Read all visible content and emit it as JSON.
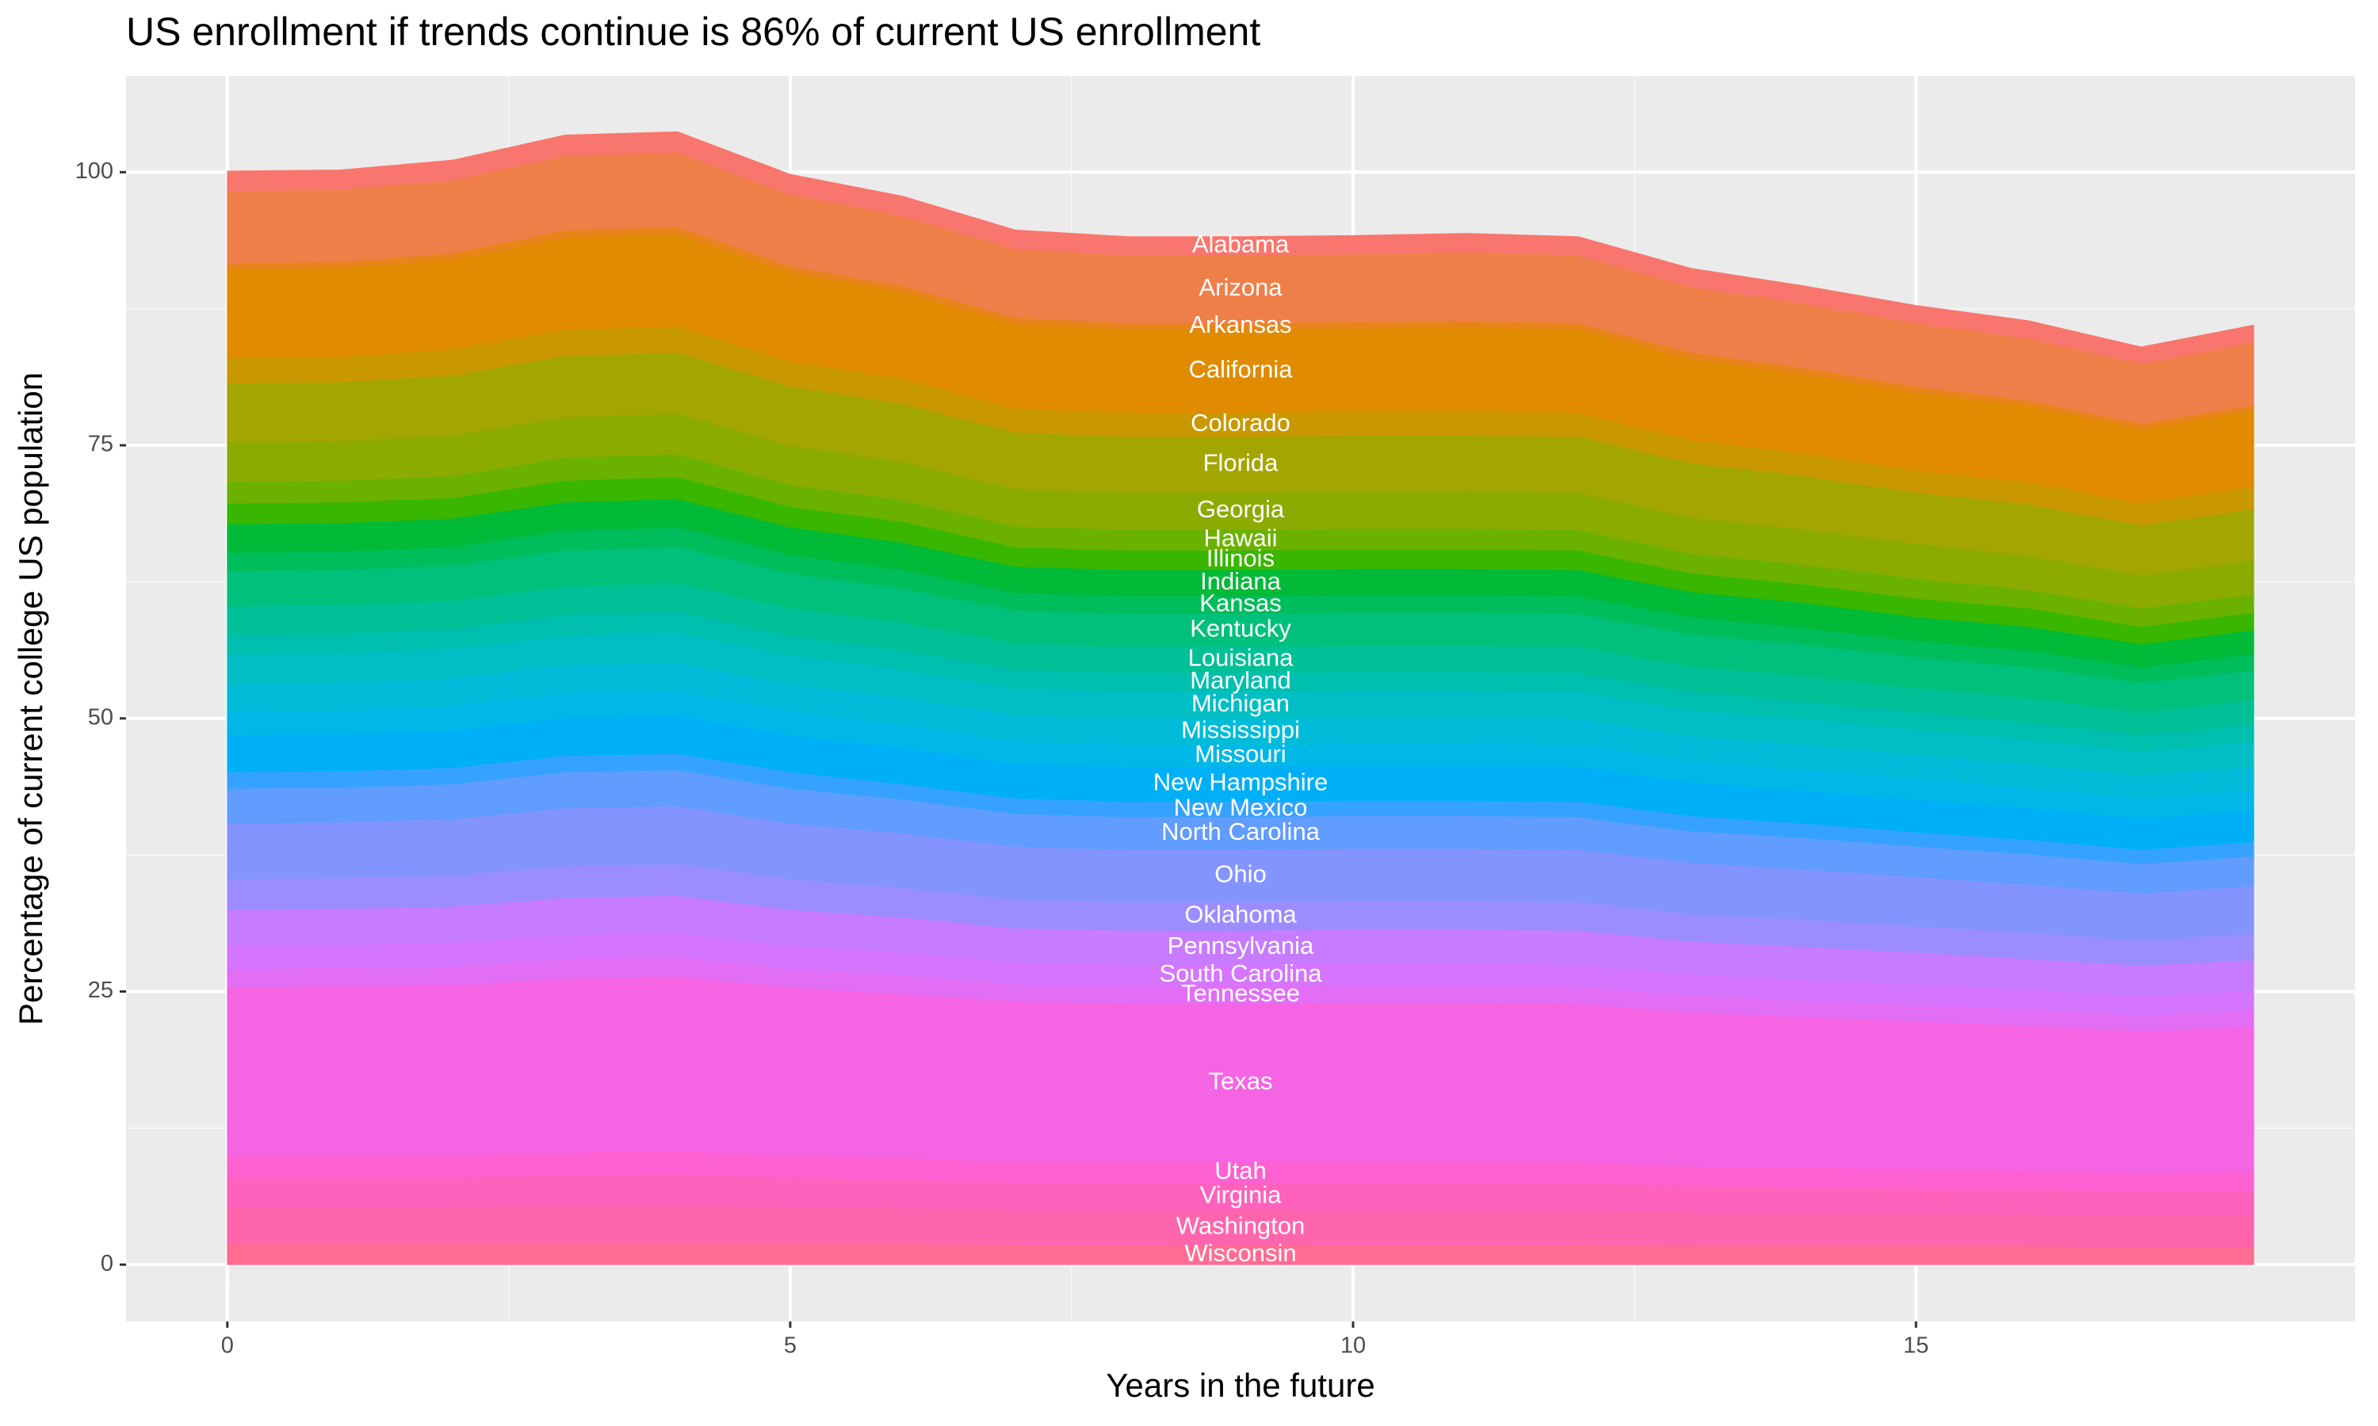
{
  "chart_data": {
    "type": "stacked_area",
    "title": "US enrollment if trends continue is 86% of current US enrollment",
    "x_label": "Years in the future",
    "y_label": "Percentage of current college US population",
    "x": [
      0,
      1,
      2,
      3,
      4,
      5,
      6,
      7,
      8,
      9,
      10,
      11,
      12,
      13,
      14,
      15,
      16,
      17,
      18
    ],
    "xlim": [
      -0.9,
      18.9
    ],
    "xticks": [
      0,
      5,
      10,
      15
    ],
    "ylim": [
      -5.2,
      108.8
    ],
    "yticks": [
      0,
      25,
      50,
      75,
      100
    ],
    "grid": true,
    "series": [
      {
        "name": "Alabama",
        "color": "#F8766D",
        "values": [
          1.8,
          1.8,
          1.8,
          1.9,
          1.9,
          1.8,
          1.8,
          1.7,
          1.7,
          1.7,
          1.7,
          1.7,
          1.7,
          1.7,
          1.6,
          1.6,
          1.6,
          1.5,
          1.6
        ]
      },
      {
        "name": "Arizona",
        "color": "#EF7F49",
        "values": [
          6.6,
          6.6,
          6.7,
          6.8,
          6.8,
          6.6,
          6.4,
          6.3,
          6.2,
          6.2,
          6.2,
          6.3,
          6.2,
          6.0,
          5.9,
          5.8,
          5.7,
          5.5,
          5.7
        ]
      },
      {
        "name": "Arkansas",
        "color": "#E8851A",
        "values": [
          0.6,
          0.6,
          0.6,
          0.7,
          0.7,
          0.6,
          0.6,
          0.6,
          0.6,
          0.6,
          0.6,
          0.6,
          0.6,
          0.6,
          0.6,
          0.6,
          0.5,
          0.5,
          0.5
        ]
      },
      {
        "name": "California",
        "color": "#E08B00",
        "values": [
          8.1,
          8.1,
          8.2,
          8.4,
          8.4,
          8.1,
          7.9,
          7.7,
          7.6,
          7.6,
          7.6,
          7.7,
          7.6,
          7.4,
          7.2,
          7.1,
          7.0,
          6.8,
          7.0
        ]
      },
      {
        "name": "Colorado",
        "color": "#C99800",
        "values": [
          2.3,
          2.3,
          2.4,
          2.4,
          2.4,
          2.3,
          2.3,
          2.2,
          2.2,
          2.2,
          2.2,
          2.2,
          2.2,
          2.1,
          2.1,
          2.0,
          2.0,
          2.0,
          2.0
        ]
      },
      {
        "name": "Florida",
        "color": "#A3A500",
        "values": [
          5.4,
          5.4,
          5.5,
          5.6,
          5.6,
          5.4,
          5.3,
          5.2,
          5.1,
          5.1,
          5.1,
          5.1,
          5.1,
          5.0,
          4.9,
          4.7,
          4.7,
          4.6,
          4.7
        ]
      },
      {
        "name": "Georgia",
        "color": "#8CAB00",
        "values": [
          3.6,
          3.6,
          3.7,
          3.7,
          3.7,
          3.6,
          3.5,
          3.4,
          3.4,
          3.4,
          3.4,
          3.4,
          3.4,
          3.3,
          3.2,
          3.2,
          3.1,
          3.0,
          3.1
        ]
      },
      {
        "name": "Hawaii",
        "color": "#6BB100",
        "values": [
          2.0,
          2.0,
          2.0,
          2.1,
          2.1,
          2.0,
          2.0,
          1.9,
          1.9,
          1.9,
          1.9,
          1.9,
          1.9,
          1.8,
          1.8,
          1.8,
          1.7,
          1.7,
          1.7
        ]
      },
      {
        "name": "Illinois",
        "color": "#39B600",
        "values": [
          1.9,
          1.9,
          1.9,
          2.0,
          2.0,
          1.9,
          1.9,
          1.8,
          1.8,
          1.8,
          1.8,
          1.8,
          1.8,
          1.7,
          1.7,
          1.7,
          1.7,
          1.6,
          1.6
        ]
      },
      {
        "name": "Indiana",
        "color": "#00BA38",
        "values": [
          2.6,
          2.6,
          2.6,
          2.6,
          2.6,
          2.5,
          2.5,
          2.4,
          2.4,
          2.4,
          2.4,
          2.4,
          2.4,
          2.3,
          2.3,
          2.2,
          2.2,
          2.1,
          2.2
        ]
      },
      {
        "name": "Kansas",
        "color": "#00BD5C",
        "values": [
          1.7,
          1.7,
          1.7,
          1.8,
          1.8,
          1.7,
          1.7,
          1.6,
          1.6,
          1.6,
          1.6,
          1.6,
          1.6,
          1.6,
          1.5,
          1.5,
          1.5,
          1.4,
          1.5
        ]
      },
      {
        "name": "Kentucky",
        "color": "#00C07B",
        "values": [
          3.2,
          3.2,
          3.2,
          3.3,
          3.3,
          3.2,
          3.1,
          3.0,
          3.0,
          3.0,
          3.0,
          3.0,
          3.0,
          2.9,
          2.9,
          2.8,
          2.8,
          2.7,
          2.7
        ]
      },
      {
        "name": "Louisiana",
        "color": "#00C097",
        "values": [
          2.6,
          2.6,
          2.6,
          2.6,
          2.6,
          2.5,
          2.5,
          2.4,
          2.4,
          2.4,
          2.4,
          2.4,
          2.4,
          2.3,
          2.3,
          2.2,
          2.2,
          2.1,
          2.2
        ]
      },
      {
        "name": "Maryland",
        "color": "#00BFAE",
        "values": [
          1.8,
          1.8,
          1.8,
          1.9,
          1.9,
          1.8,
          1.8,
          1.7,
          1.7,
          1.7,
          1.7,
          1.7,
          1.7,
          1.7,
          1.6,
          1.6,
          1.6,
          1.5,
          1.6
        ]
      },
      {
        "name": "Michigan",
        "color": "#00BFC4",
        "values": [
          2.7,
          2.7,
          2.7,
          2.7,
          2.8,
          2.7,
          2.6,
          2.5,
          2.5,
          2.5,
          2.5,
          2.5,
          2.5,
          2.4,
          2.4,
          2.3,
          2.3,
          2.2,
          2.3
        ]
      },
      {
        "name": "Mississippi",
        "color": "#00BCD8",
        "values": [
          2.6,
          2.6,
          2.6,
          2.6,
          2.6,
          2.5,
          2.5,
          2.4,
          2.4,
          2.4,
          2.4,
          2.4,
          2.4,
          2.3,
          2.3,
          2.2,
          2.2,
          2.1,
          2.2
        ]
      },
      {
        "name": "Missouri",
        "color": "#00B8E7",
        "values": [
          2.1,
          2.1,
          2.2,
          2.2,
          2.2,
          2.1,
          2.1,
          2.0,
          2.0,
          2.0,
          2.0,
          2.0,
          2.0,
          1.9,
          1.9,
          1.9,
          1.8,
          1.8,
          1.8
        ]
      },
      {
        "name": "New Hampshire",
        "color": "#00B0F6",
        "values": [
          3.4,
          3.4,
          3.4,
          3.5,
          3.5,
          3.4,
          3.3,
          3.2,
          3.2,
          3.2,
          3.2,
          3.2,
          3.2,
          3.1,
          3.0,
          3.0,
          2.9,
          2.9,
          2.9
        ]
      },
      {
        "name": "New Mexico",
        "color": "#35A2FF",
        "values": [
          1.5,
          1.5,
          1.5,
          1.5,
          1.5,
          1.5,
          1.4,
          1.4,
          1.4,
          1.4,
          1.4,
          1.4,
          1.4,
          1.4,
          1.3,
          1.3,
          1.3,
          1.3,
          1.3
        ]
      },
      {
        "name": "North Carolina",
        "color": "#619CFF",
        "values": [
          3.2,
          3.2,
          3.2,
          3.3,
          3.3,
          3.2,
          3.1,
          3.0,
          3.0,
          3.0,
          3.0,
          3.0,
          3.0,
          2.9,
          2.9,
          2.8,
          2.8,
          2.7,
          2.7
        ]
      },
      {
        "name": "Ohio",
        "color": "#8494FF",
        "values": [
          5.1,
          5.1,
          5.2,
          5.3,
          5.3,
          5.1,
          5.0,
          4.9,
          4.8,
          4.8,
          4.8,
          4.8,
          4.8,
          4.7,
          4.6,
          4.5,
          4.4,
          4.3,
          4.4
        ]
      },
      {
        "name": "Oklahoma",
        "color": "#9C8DFF",
        "values": [
          2.8,
          2.8,
          2.8,
          2.9,
          2.9,
          2.8,
          2.7,
          2.6,
          2.6,
          2.6,
          2.6,
          2.6,
          2.6,
          2.5,
          2.5,
          2.4,
          2.4,
          2.3,
          2.4
        ]
      },
      {
        "name": "Pennsylvania",
        "color": "#C77CFF",
        "values": [
          3.3,
          3.3,
          3.3,
          3.4,
          3.4,
          3.3,
          3.2,
          3.1,
          3.1,
          3.1,
          3.1,
          3.1,
          3.1,
          3.0,
          3.0,
          2.9,
          2.8,
          2.8,
          2.8
        ]
      },
      {
        "name": "South Carolina",
        "color": "#D675FE",
        "values": [
          2.1,
          2.1,
          2.2,
          2.2,
          2.2,
          2.1,
          2.1,
          2.0,
          2.0,
          2.0,
          2.0,
          2.0,
          2.0,
          1.9,
          1.9,
          1.9,
          1.8,
          1.8,
          1.8
        ]
      },
      {
        "name": "Tennessee",
        "color": "#E36EF6",
        "values": [
          1.7,
          1.7,
          1.7,
          1.8,
          1.8,
          1.7,
          1.7,
          1.6,
          1.6,
          1.6,
          1.6,
          1.6,
          1.6,
          1.6,
          1.5,
          1.5,
          1.5,
          1.4,
          1.5
        ]
      },
      {
        "name": "Texas",
        "color": "#F564E3",
        "values": [
          15.4,
          15.5,
          15.6,
          15.9,
          16.0,
          15.4,
          15.0,
          14.7,
          14.5,
          14.5,
          14.6,
          14.6,
          14.5,
          14.1,
          13.8,
          13.5,
          13.3,
          13.0,
          13.3
        ]
      },
      {
        "name": "Utah",
        "color": "#FD61D1",
        "values": [
          2.0,
          2.0,
          2.0,
          2.1,
          2.1,
          2.0,
          2.0,
          1.9,
          1.9,
          1.9,
          1.9,
          1.9,
          1.9,
          1.8,
          1.8,
          1.8,
          1.7,
          1.7,
          1.7
        ]
      },
      {
        "name": "Virginia",
        "color": "#FF62BC",
        "values": [
          2.7,
          2.7,
          2.7,
          2.7,
          2.8,
          2.7,
          2.6,
          2.5,
          2.5,
          2.5,
          2.5,
          2.5,
          2.5,
          2.4,
          2.4,
          2.3,
          2.3,
          2.2,
          2.3
        ]
      },
      {
        "name": "Washington",
        "color": "#FF65AC",
        "values": [
          3.4,
          3.4,
          3.4,
          3.5,
          3.5,
          3.4,
          3.3,
          3.2,
          3.2,
          3.2,
          3.2,
          3.2,
          3.2,
          3.1,
          3.0,
          3.0,
          2.9,
          2.9,
          2.9
        ]
      },
      {
        "name": "Wisconsin",
        "color": "#FF6C91",
        "values": [
          1.9,
          1.9,
          1.9,
          2.0,
          2.0,
          1.9,
          1.9,
          1.8,
          1.8,
          1.8,
          1.8,
          1.8,
          1.8,
          1.7,
          1.7,
          1.7,
          1.7,
          1.6,
          1.6
        ]
      }
    ]
  }
}
